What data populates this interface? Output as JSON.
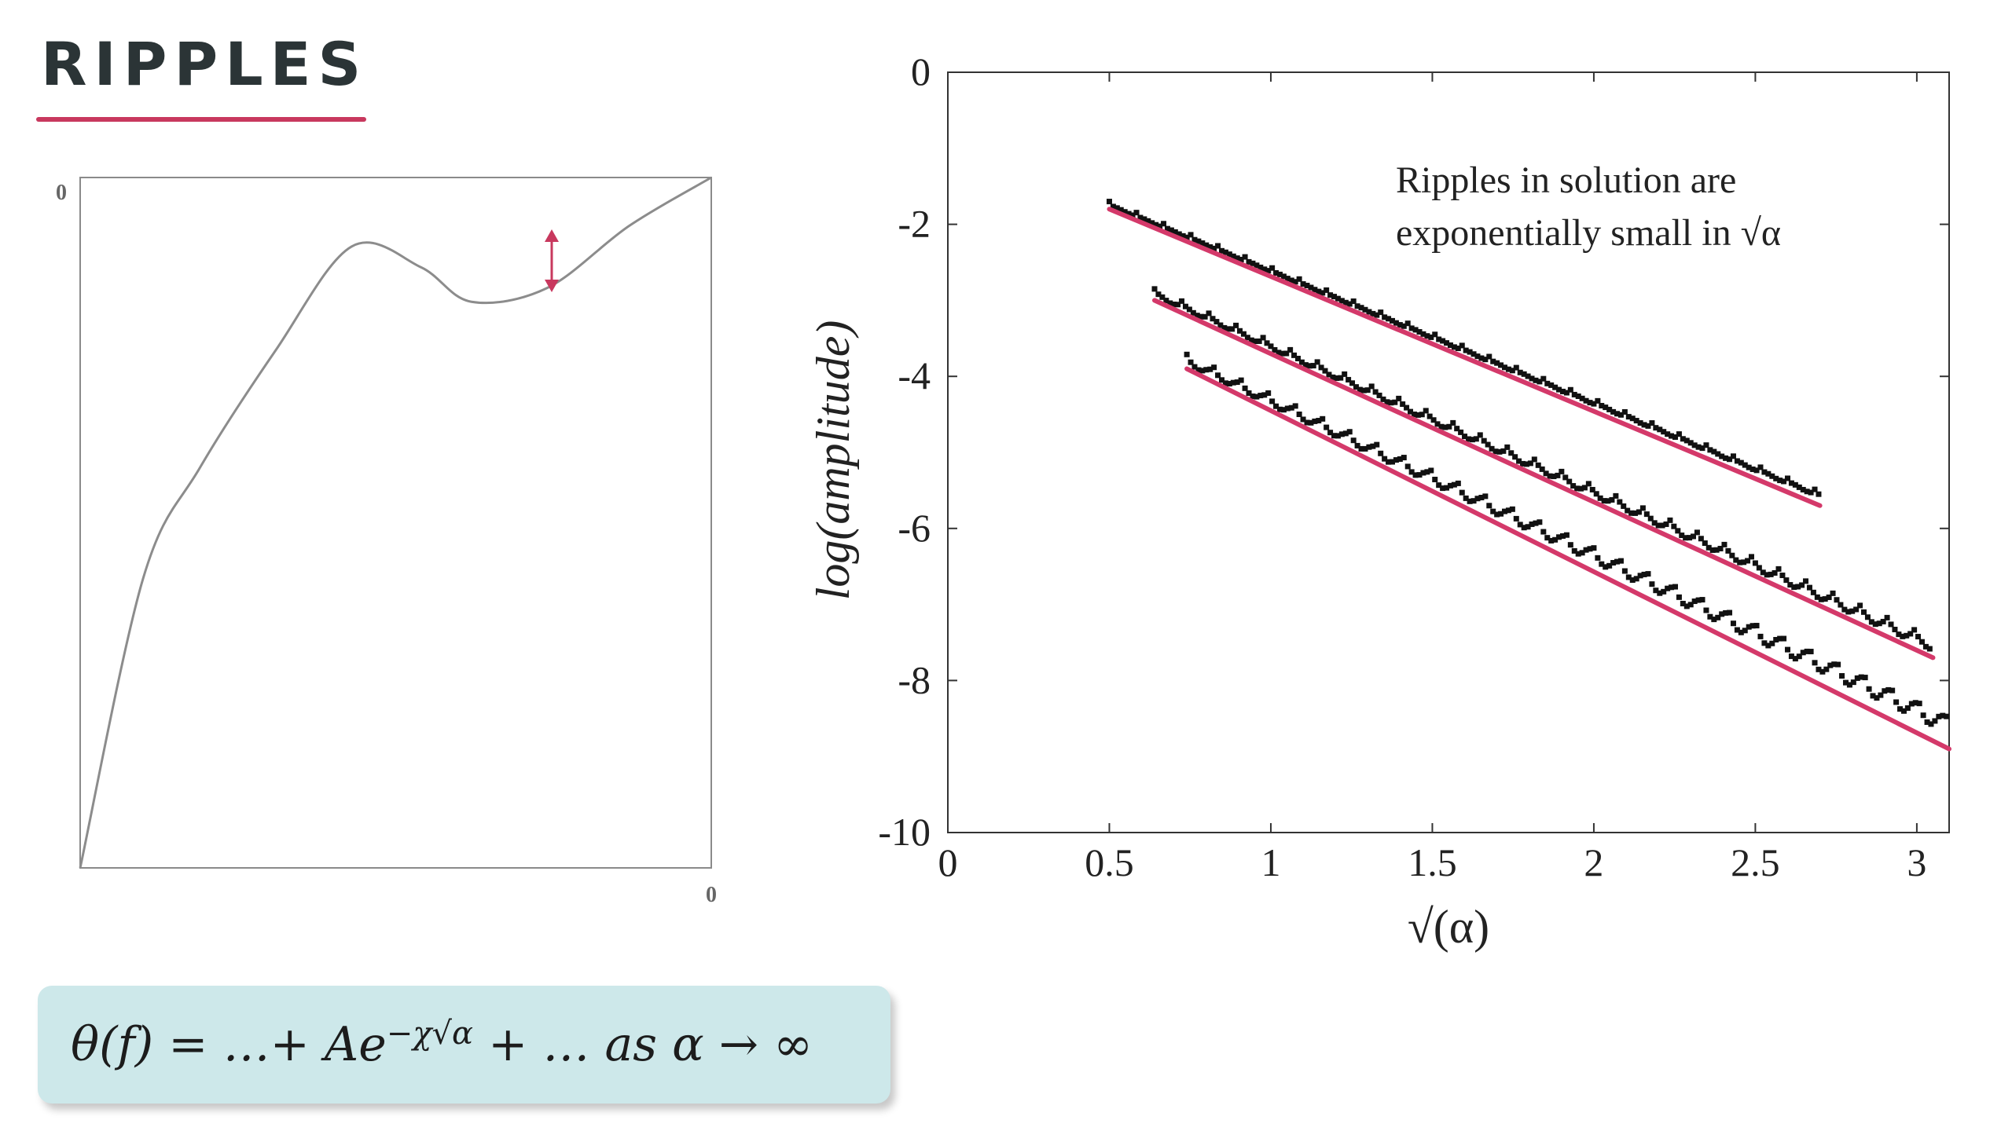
{
  "slide": {
    "title": "RIPPLES",
    "formula": "θ(f) =  …+ Ae^(−χ√α) +  …  as α → ∞"
  },
  "colors": {
    "accent": "#c8385e",
    "fit_line": "#d4396a",
    "title": "#2b3436",
    "formula_bg": "#cde8ea",
    "curve": "#8c8c8c",
    "data_points": "#111111"
  },
  "chart_data": [
    {
      "type": "line",
      "title": "",
      "xlabel": "",
      "ylabel": "",
      "x_tick_label": "0",
      "y_tick_label": "0",
      "grid": false,
      "description_marks": [
        "vertical double-headed arrow marking ripple amplitude between local maximum and local minimum"
      ],
      "series": [
        {
          "values_shape": [
            [
              0,
              0.0
            ],
            [
              0.1,
              0.42
            ],
            [
              0.19,
              0.58
            ],
            [
              0.31,
              0.75
            ],
            [
              0.43,
              0.9
            ],
            [
              0.54,
              0.87
            ],
            [
              0.62,
              0.82
            ],
            [
              0.74,
              0.84
            ],
            [
              0.87,
              0.93
            ],
            [
              1.0,
              1.0
            ]
          ]
        }
      ]
    },
    {
      "type": "scatter",
      "title": "",
      "annotation": "Ripples in solution are exponentially small in √α",
      "xlabel": "√(α)",
      "ylabel": "log(amplitude)",
      "xlim": [
        0,
        3.1
      ],
      "ylim": [
        -10,
        0
      ],
      "x_ticks": [
        "0",
        "0.5",
        "1",
        "1.5",
        "2",
        "2.5",
        "3"
      ],
      "y_ticks": [
        "0",
        "-2",
        "-4",
        "-6",
        "-8",
        "-10"
      ],
      "grid": false,
      "series": [
        {
          "data": {
            "x_range": [
              0.5,
              2.7
            ],
            "trend": [
              [
                0.5,
                -1.75
              ],
              [
                2.7,
                -5.57
              ]
            ],
            "ripple": 0.01
          },
          "fit": [
            [
              0.5,
              -1.8
            ],
            [
              2.7,
              -5.7
            ]
          ]
        },
        {
          "data": {
            "x_range": [
              0.64,
              3.05
            ],
            "trend": [
              [
                0.64,
                -2.92
              ],
              [
                3.05,
                -7.55
              ]
            ],
            "ripple": 0.04
          },
          "fit": [
            [
              0.64,
              -3.0
            ],
            [
              3.05,
              -7.7
            ]
          ]
        },
        {
          "data": {
            "x_range": [
              0.74,
              3.1
            ],
            "trend": [
              [
                0.74,
                -3.8
              ],
              [
                3.1,
                -8.6
              ]
            ],
            "ripple": 0.07
          },
          "fit": [
            [
              0.74,
              -3.9
            ],
            [
              3.1,
              -8.9
            ]
          ]
        }
      ]
    }
  ]
}
